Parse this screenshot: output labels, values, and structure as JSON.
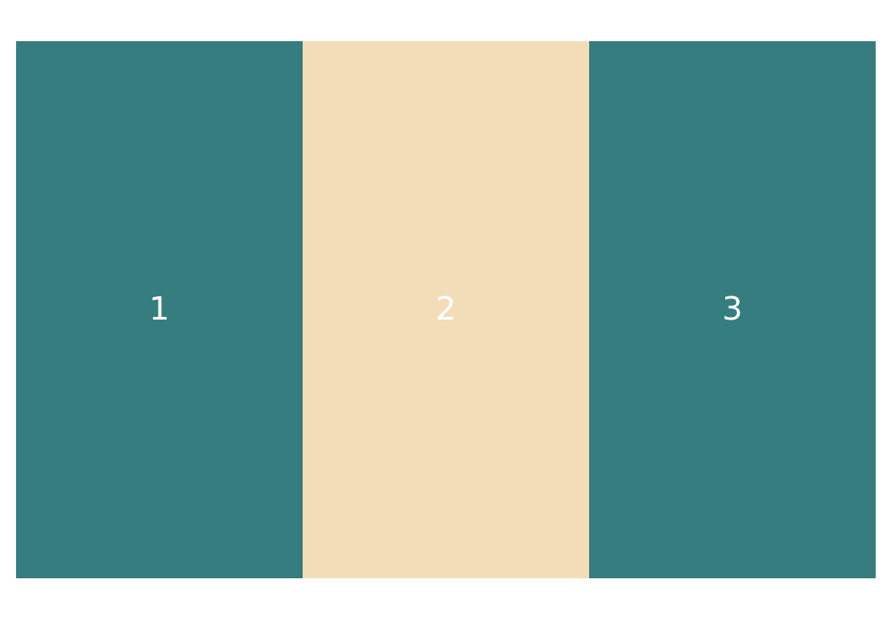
{
  "colors": {
    "teal": "#357d7e",
    "wheat": "#f3ddb9",
    "text": "#ffffff"
  },
  "panels": [
    {
      "label": "1",
      "color": "#357d7e"
    },
    {
      "label": "2",
      "color": "#f3ddb9"
    },
    {
      "label": "3",
      "color": "#357d7e"
    }
  ]
}
